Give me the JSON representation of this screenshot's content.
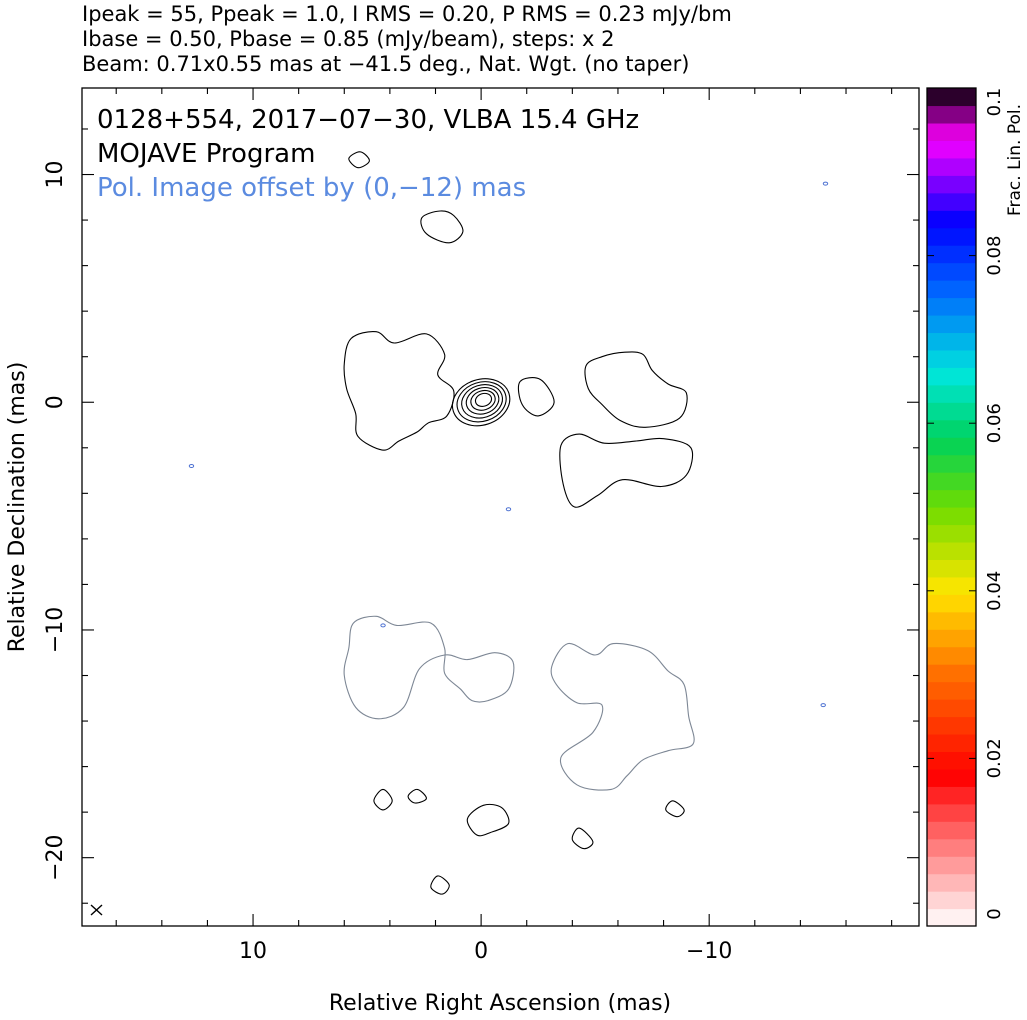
{
  "header": {
    "line1": "Ipeak = 55, Ppeak = 1.0, I RMS = 0.20, P RMS = 0.23 mJy/bm",
    "line2": "Ibase = 0.50, Pbase = 0.85 (mJy/beam), steps: x 2",
    "line3": "Beam: 0.71x0.55 mas at −41.5 deg., Nat. Wgt. (no taper)"
  },
  "chart_data": {
    "type": "contour",
    "title": "0128+554, 2017−07−30, VLBA 15.4 GHz",
    "subtitle": "MOJAVE Program",
    "note": "Pol. Image offset by (0,−12) mas",
    "xlabel": "Relative Right Ascension (mas)",
    "ylabel": "Relative Declination (mas)",
    "xlim": [
      17.5,
      -19.2
    ],
    "ylim": [
      -23.0,
      13.8
    ],
    "x_ticks": [
      {
        "v": 10,
        "label": "10"
      },
      {
        "v": 0,
        "label": "0"
      },
      {
        "v": -10,
        "label": "−10"
      }
    ],
    "y_ticks": [
      {
        "v": 10,
        "label": "10"
      },
      {
        "v": 0,
        "label": "0"
      },
      {
        "v": -10,
        "label": "−10"
      },
      {
        "v": -20,
        "label": "−20"
      }
    ],
    "colorbar": {
      "label": "Frac. Lin. Pol.",
      "range": [
        0,
        0.1
      ],
      "ticks": [
        {
          "v": 0,
          "label": "0"
        },
        {
          "v": 0.02,
          "label": "0.02"
        },
        {
          "v": 0.04,
          "label": "0.04"
        },
        {
          "v": 0.06,
          "label": "0.06"
        },
        {
          "v": 0.08,
          "label": "0.08"
        },
        {
          "v": 0.1,
          "label": "0.1"
        }
      ]
    },
    "core": {
      "x": 0,
      "y": 0,
      "peak": 55,
      "levels": 6
    },
    "total_intensity_regions": [
      {
        "name": "east-lobe",
        "points": [
          [
            5.7,
            2.8
          ],
          [
            4.6,
            3.1
          ],
          [
            3.8,
            2.6
          ],
          [
            2.4,
            3.0
          ],
          [
            1.6,
            2.1
          ],
          [
            1.9,
            1.2
          ],
          [
            1.2,
            0.5
          ],
          [
            1.5,
            -0.6
          ],
          [
            2.3,
            -0.9
          ],
          [
            2.8,
            -1.3
          ],
          [
            3.6,
            -1.7
          ],
          [
            4.3,
            -2.1
          ],
          [
            5.4,
            -1.5
          ],
          [
            5.5,
            -0.5
          ],
          [
            5.9,
            0.6
          ],
          [
            6.0,
            1.7
          ]
        ]
      },
      {
        "name": "jet-knot",
        "points": [
          [
            -2.6,
            1.0
          ],
          [
            -1.7,
            0.9
          ],
          [
            -1.8,
            -0.1
          ],
          [
            -2.5,
            -0.6
          ],
          [
            -3.2,
            0.0
          ]
        ]
      },
      {
        "name": "west-lobe-north",
        "points": [
          [
            -4.6,
            1.6
          ],
          [
            -5.3,
            2.0
          ],
          [
            -6.3,
            2.2
          ],
          [
            -7.1,
            2.1
          ],
          [
            -7.5,
            1.4
          ],
          [
            -8.2,
            0.8
          ],
          [
            -9.0,
            0.4
          ],
          [
            -8.7,
            -0.7
          ],
          [
            -7.2,
            -1.1
          ],
          [
            -6.1,
            -0.8
          ],
          [
            -5.3,
            -0.1
          ],
          [
            -4.7,
            0.6
          ]
        ]
      },
      {
        "name": "west-lobe-south",
        "points": [
          [
            -3.5,
            -1.9
          ],
          [
            -4.3,
            -1.4
          ],
          [
            -5.4,
            -1.8
          ],
          [
            -6.8,
            -1.7
          ],
          [
            -8.0,
            -1.6
          ],
          [
            -9.2,
            -2.0
          ],
          [
            -9.0,
            -3.2
          ],
          [
            -7.9,
            -3.7
          ],
          [
            -6.2,
            -3.4
          ],
          [
            -5.1,
            -4.1
          ],
          [
            -4.1,
            -4.6
          ],
          [
            -3.6,
            -3.6
          ]
        ]
      },
      {
        "name": "northern-patch",
        "points": [
          [
            0.8,
            7.5
          ],
          [
            1.2,
            8.2
          ],
          [
            1.8,
            8.4
          ],
          [
            2.6,
            8.1
          ],
          [
            2.4,
            7.4
          ],
          [
            1.4,
            7.0
          ]
        ]
      },
      {
        "name": "southern-patch",
        "points": [
          [
            0.6,
            -18.3
          ],
          [
            0.2,
            -19.0
          ],
          [
            -0.4,
            -18.9
          ],
          [
            -1.2,
            -18.5
          ],
          [
            -0.9,
            -17.8
          ],
          [
            -0.1,
            -17.7
          ]
        ]
      },
      {
        "name": "blob-1",
        "points": [
          [
            4.3,
            -17.0
          ],
          [
            4.7,
            -17.5
          ],
          [
            4.3,
            -17.9
          ],
          [
            3.9,
            -17.5
          ]
        ]
      },
      {
        "name": "blob-2",
        "points": [
          [
            2.8,
            -17.0
          ],
          [
            2.4,
            -17.4
          ],
          [
            2.9,
            -17.6
          ],
          [
            3.2,
            -17.3
          ]
        ]
      },
      {
        "name": "blob-3",
        "points": [
          [
            -4.3,
            -18.7
          ],
          [
            -4.9,
            -19.3
          ],
          [
            -4.5,
            -19.6
          ],
          [
            -4.0,
            -19.2
          ]
        ]
      },
      {
        "name": "blob-4",
        "points": [
          [
            -8.4,
            -17.5
          ],
          [
            -8.9,
            -17.9
          ],
          [
            -8.6,
            -18.2
          ],
          [
            -8.1,
            -17.9
          ]
        ]
      },
      {
        "name": "blob-5",
        "points": [
          [
            1.9,
            -20.8
          ],
          [
            2.2,
            -21.3
          ],
          [
            1.7,
            -21.6
          ],
          [
            1.4,
            -21.2
          ]
        ]
      },
      {
        "name": "blob-6",
        "points": [
          [
            5.8,
            10.7
          ],
          [
            5.3,
            11.0
          ],
          [
            4.9,
            10.6
          ],
          [
            5.4,
            10.3
          ]
        ]
      }
    ],
    "polarization_regions": [
      {
        "name": "pol-east",
        "points": [
          [
            5.6,
            -9.7
          ],
          [
            4.6,
            -9.4
          ],
          [
            3.7,
            -9.8
          ],
          [
            2.2,
            -9.7
          ],
          [
            1.6,
            -10.8
          ],
          [
            1.6,
            -11.9
          ],
          [
            0.9,
            -12.6
          ],
          [
            0.4,
            -13.1
          ],
          [
            -0.3,
            -13.1
          ],
          [
            -1.2,
            -12.6
          ],
          [
            -1.4,
            -11.4
          ],
          [
            -0.6,
            -11.0
          ],
          [
            0.6,
            -11.3
          ],
          [
            1.6,
            -11.1
          ],
          [
            2.7,
            -11.7
          ],
          [
            3.4,
            -13.4
          ],
          [
            4.5,
            -13.9
          ],
          [
            5.5,
            -13.4
          ],
          [
            6.0,
            -12.0
          ],
          [
            5.8,
            -10.8
          ]
        ]
      },
      {
        "name": "pol-west",
        "points": [
          [
            -3.1,
            -11.6
          ],
          [
            -3.8,
            -10.6
          ],
          [
            -5.0,
            -11.1
          ],
          [
            -5.8,
            -10.6
          ],
          [
            -7.3,
            -10.9
          ],
          [
            -8.2,
            -11.8
          ],
          [
            -8.9,
            -12.4
          ],
          [
            -9.1,
            -13.8
          ],
          [
            -9.3,
            -15.0
          ],
          [
            -8.2,
            -15.3
          ],
          [
            -7.1,
            -15.7
          ],
          [
            -6.4,
            -16.4
          ],
          [
            -5.7,
            -17.0
          ],
          [
            -4.2,
            -16.8
          ],
          [
            -3.5,
            -15.6
          ],
          [
            -4.9,
            -14.5
          ],
          [
            -5.3,
            -13.3
          ],
          [
            -4.2,
            -13.2
          ],
          [
            -3.3,
            -12.4
          ]
        ]
      }
    ],
    "polarization_points": [
      {
        "x": 12.7,
        "y": -2.8
      },
      {
        "x": -1.2,
        "y": -4.7
      },
      {
        "x": -15.0,
        "y": -13.3
      },
      {
        "x": -15.1,
        "y": 9.6
      },
      {
        "x": 4.3,
        "y": -9.8
      }
    ]
  }
}
